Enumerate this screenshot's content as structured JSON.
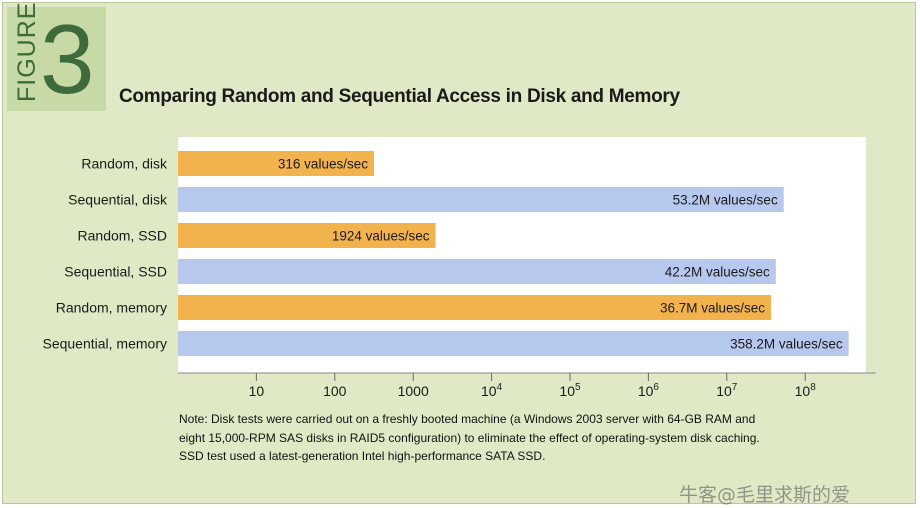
{
  "figure": {
    "word": "FIGURE",
    "number": "3"
  },
  "title": "Comparing Random and Sequential Access in Disk and Memory",
  "colors": {
    "random": "#f3b34c",
    "sequential": "#b6c8ee",
    "badge": "#c7d9a4",
    "background": "#dfe9c6"
  },
  "chart_data": {
    "type": "bar",
    "orientation": "horizontal",
    "x_scale": "log",
    "xlim": [
      1,
      1000000000
    ],
    "grid": false,
    "categories": [
      "Random, disk",
      "Sequential, disk",
      "Random, SSD",
      "Sequential, SSD",
      "Random, memory",
      "Sequential, memory"
    ],
    "values": [
      316,
      53200000,
      1924,
      42200000,
      36700000,
      358200000
    ],
    "data_labels": [
      "316 values/sec",
      "53.2M values/sec",
      "1924 values/sec",
      "42.2M values/sec",
      "36.7M values/sec",
      "358.2M values/sec"
    ],
    "access_types": [
      "random",
      "sequential",
      "random",
      "sequential",
      "random",
      "sequential"
    ],
    "x_ticks": [
      {
        "value": 10,
        "base": "10",
        "exp": ""
      },
      {
        "value": 100,
        "base": "100",
        "exp": ""
      },
      {
        "value": 1000,
        "base": "1000",
        "exp": ""
      },
      {
        "value": 10000,
        "base": "10",
        "exp": "4"
      },
      {
        "value": 100000,
        "base": "10",
        "exp": "5"
      },
      {
        "value": 1000000,
        "base": "10",
        "exp": "6"
      },
      {
        "value": 10000000,
        "base": "10",
        "exp": "7"
      },
      {
        "value": 100000000,
        "base": "10",
        "exp": "8"
      }
    ]
  },
  "note": [
    "Note: Disk tests were carried out on a freshly booted machine (a Windows 2003 server with 64-GB RAM and",
    "eight 15,000-RPM SAS disks in RAID5 configuration) to eliminate the effect of operating-system disk caching.",
    "SSD test used a latest-generation Intel high-performance SATA SSD."
  ],
  "watermark": "牛客@毛里求斯的爱"
}
